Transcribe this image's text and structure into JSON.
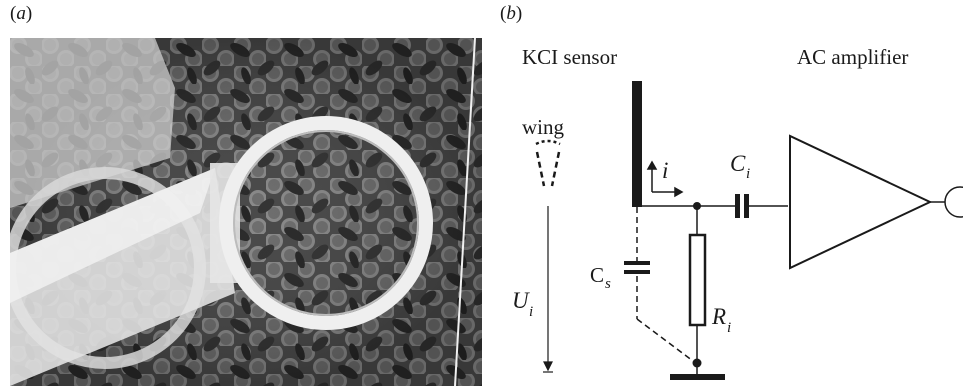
{
  "panels": {
    "a": {
      "label_open": "(",
      "letter": "a",
      "label_close": ")"
    },
    "b": {
      "label_open": "(",
      "letter": "b",
      "label_close": ")"
    }
  },
  "photo": {
    "subject": "honeycomb with bees and ring-shaped KCl sensor holder",
    "colors": {
      "comb": "#5a5a5a",
      "ring": "#e8e8e8",
      "prism": "#d9d9d9"
    }
  },
  "schematic": {
    "sensor_title": "KCI sensor",
    "amplifier_title": "AC amplifier",
    "wing_label": "wing",
    "current_symbol": "i",
    "ci_main": "C",
    "ci_sub": "i",
    "cs_main": "C",
    "cs_sub": "s",
    "ri_main": "R",
    "ri_sub": "i",
    "ui_main": "U",
    "ui_sub": "i",
    "colors": {
      "line": "#1a1a1a",
      "sensor_plate": "#1a1a1a"
    }
  }
}
